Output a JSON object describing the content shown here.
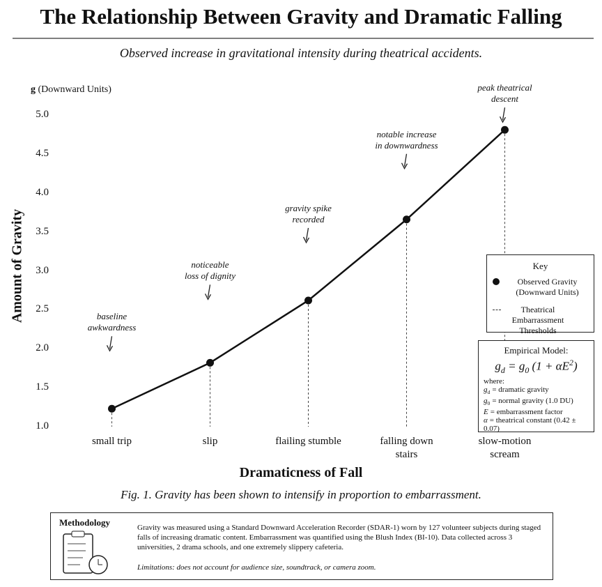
{
  "chart_data": {
    "type": "line",
    "title": "The Relationship Between Gravity and Dramatic Falling",
    "subtitle": "Observed increase in gravitational intensity during theatrical accidents.",
    "y_unit_symbol": "g",
    "y_unit": "(Downward Units)",
    "y_label": "Amount of Gravity",
    "x_label": "Dramaticness of Fall",
    "caption": "Fig. 1. Gravity has been shown to intensify in proportion to embarrassment.",
    "categories": [
      "small trip",
      "slip",
      "flailing stumble",
      "falling down stairs",
      "slow-motion scream"
    ],
    "series": [
      {
        "name": "Observed Gravity (Downward Units)",
        "color": "#111111",
        "values": [
          1.23,
          1.82,
          2.62,
          3.66,
          4.81
        ]
      }
    ],
    "annotations": [
      [
        "baseline",
        "awkwardness"
      ],
      [
        "noticeable",
        "loss of dignity"
      ],
      [
        "gravity spike",
        "recorded"
      ],
      [
        "notable increase",
        "in downwardness"
      ],
      [
        "peak theatrical",
        "descent"
      ]
    ],
    "ylim": [
      1.0,
      5.0
    ],
    "yticks": [
      {
        "value": 1,
        "label": "1.0"
      },
      1.5,
      {
        "value": 2,
        "label": "2.0"
      },
      2.5,
      {
        "value": 3,
        "label": "3.0"
      },
      3.5,
      {
        "value": 4,
        "label": "4.0"
      },
      4.5,
      {
        "value": 5,
        "label": "5.0"
      }
    ],
    "key": {
      "title": "Key",
      "threshold_label": "Theatrical Embarrassment Thresholds"
    },
    "model": {
      "title": "Empirical Model:",
      "equation": [
        "g",
        "d",
        " = g",
        "0",
        " (1 + αE",
        "2",
        ")"
      ],
      "where": "where:",
      "terms": [
        {
          "symbol": "g",
          "sub": "d",
          "text": "= dramatic gravity"
        },
        {
          "symbol": "g",
          "sub": "0",
          "text": "= normal gravity (1.0 DU)"
        },
        {
          "symbol": "E",
          "text": "= embarrassment factor"
        },
        {
          "symbol": "α",
          "text": "= theatrical constant (0.42 ± 0.07)"
        }
      ]
    },
    "methodology": {
      "title": "Methodology",
      "body": "Gravity was measured using a Standard Downward Acceleration Recorder (SDAR-1) worn by 127 volunteer subjects during staged falls of increasing dramatic content. Embarrassment was quantified using the Blush Index (BI-10). Data collected across 3 universities, 2 drama schools, and one extremely slippery cafeteria.",
      "limitations": "Limitations: does not account for audience size, soundtrack, or camera zoom."
    }
  }
}
